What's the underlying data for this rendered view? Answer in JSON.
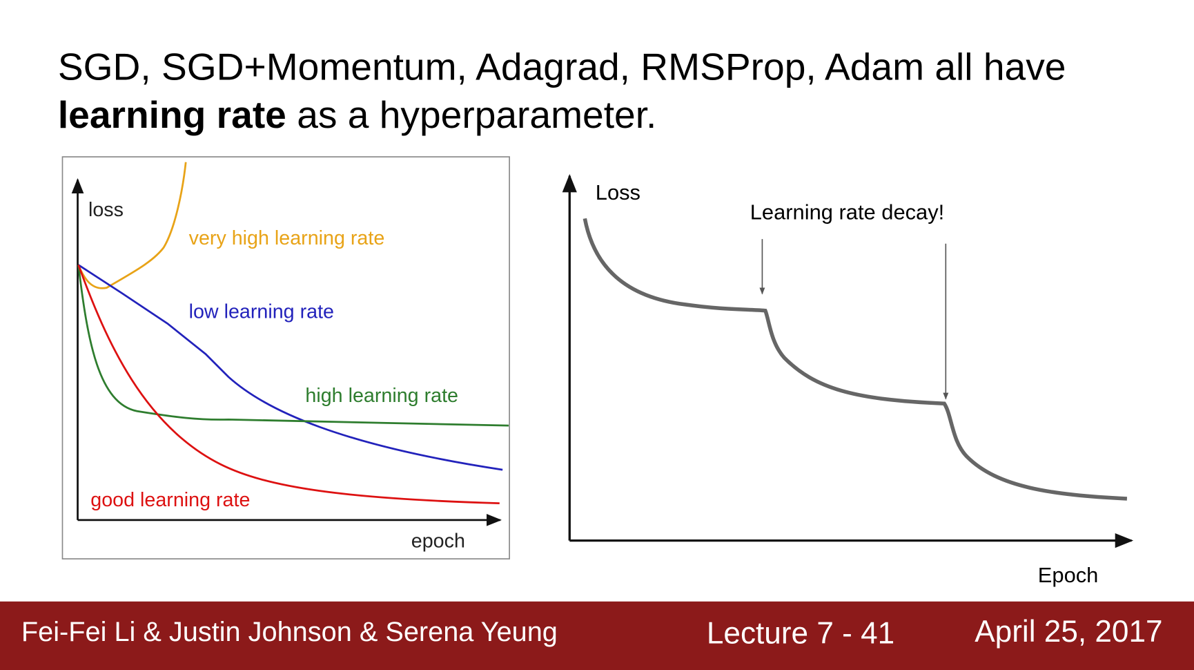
{
  "title": {
    "line1": "SGD, SGD+Momentum, Adagrad, RMSProp, Adam all have",
    "bold": "learning rate",
    "rest": "as a hyperparameter."
  },
  "left_diagram": {
    "y_label": "loss",
    "x_label": "epoch",
    "curves": [
      {
        "label": "very high learning rate"
      },
      {
        "label": "low learning rate"
      },
      {
        "label": "high learning rate"
      },
      {
        "label": "good learning rate"
      }
    ]
  },
  "right_diagram": {
    "y_label": "Loss",
    "x_label": "Epoch",
    "annotation": "Learning rate decay!"
  },
  "footer": {
    "authors": "Fei-Fei Li & Justin Johnson & Serena Yeung",
    "lecture": "Lecture 7 - 41",
    "date": "April 25, 2017"
  }
}
